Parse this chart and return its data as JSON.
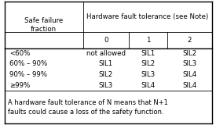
{
  "title_col1": "Safe failure\nfraction",
  "title_col_group": "Hardware fault tolerance (see Note)",
  "col_headers": [
    "0",
    "1",
    "2"
  ],
  "rows": [
    [
      "<60%",
      "not allowed",
      "SIL1",
      "SIL2"
    ],
    [
      "60% – 90%",
      "SIL1",
      "SIL2",
      "SIL3"
    ],
    [
      "90% – 99%",
      "SIL2",
      "SIL3",
      "SIL4"
    ],
    [
      "≥99%",
      "SIL3",
      "SIL4",
      "SIL4"
    ]
  ],
  "footnote": "A hardware fault tolerance of N means that N+1\nfaults could cause a loss of the safety function.",
  "bg_color": "#ffffff",
  "border_color": "#000000",
  "text_color": "#000000",
  "font_size": 6.2,
  "header_font_size": 6.2,
  "footnote_font_size": 6.0,
  "fig_width": 2.75,
  "fig_height": 1.6
}
